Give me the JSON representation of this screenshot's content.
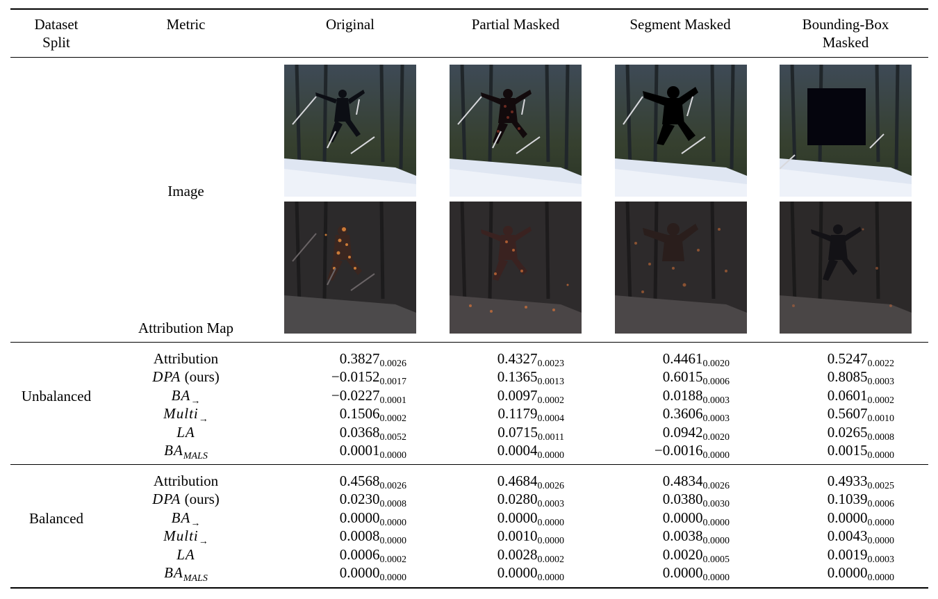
{
  "headers": {
    "split": [
      "Dataset",
      "Split"
    ],
    "metric": "Metric",
    "original": "Original",
    "partial": "Partial Masked",
    "segment": "Segment Masked",
    "bbox": [
      "Bounding-Box",
      "Masked"
    ]
  },
  "image_labels": {
    "image": "Image",
    "attribution_map": "Attribution Map"
  },
  "sections": [
    {
      "split": "Unbalanced",
      "rows": [
        {
          "metric": "Attribution",
          "values": [
            [
              "0.3827",
              "0.0026"
            ],
            [
              "0.4327",
              "0.0023"
            ],
            [
              "0.4461",
              "0.0020"
            ],
            [
              "0.5247",
              "0.0022"
            ]
          ]
        },
        {
          "metric": "DPA (ours)",
          "values": [
            [
              "−0.0152",
              "0.0017"
            ],
            [
              "0.1365",
              "0.0013"
            ],
            [
              "0.6015",
              "0.0006"
            ],
            [
              "0.8085",
              "0.0003"
            ]
          ]
        },
        {
          "metric": "BA→",
          "values": [
            [
              "−0.0227",
              "0.0001"
            ],
            [
              "0.0097",
              "0.0002"
            ],
            [
              "0.0188",
              "0.0003"
            ],
            [
              "0.0601",
              "0.0002"
            ]
          ]
        },
        {
          "metric": "Multi→",
          "values": [
            [
              "0.1506",
              "0.0002"
            ],
            [
              "0.1179",
              "0.0004"
            ],
            [
              "0.3606",
              "0.0003"
            ],
            [
              "0.5607",
              "0.0010"
            ]
          ]
        },
        {
          "metric": "LA",
          "values": [
            [
              "0.0368",
              "0.0052"
            ],
            [
              "0.0715",
              "0.0011"
            ],
            [
              "0.0942",
              "0.0020"
            ],
            [
              "0.0265",
              "0.0008"
            ]
          ]
        },
        {
          "metric": "BA_MALS",
          "values": [
            [
              "0.0001",
              "0.0000"
            ],
            [
              "0.0004",
              "0.0000"
            ],
            [
              "−0.0016",
              "0.0000"
            ],
            [
              "0.0015",
              "0.0000"
            ]
          ]
        }
      ]
    },
    {
      "split": "Balanced",
      "rows": [
        {
          "metric": "Attribution",
          "values": [
            [
              "0.4568",
              "0.0026"
            ],
            [
              "0.4684",
              "0.0026"
            ],
            [
              "0.4834",
              "0.0026"
            ],
            [
              "0.4933",
              "0.0025"
            ]
          ]
        },
        {
          "metric": "DPA (ours)",
          "values": [
            [
              "0.0230",
              "0.0008"
            ],
            [
              "0.0280",
              "0.0003"
            ],
            [
              "0.0380",
              "0.0030"
            ],
            [
              "0.1039",
              "0.0006"
            ]
          ]
        },
        {
          "metric": "BA→",
          "values": [
            [
              "0.0000",
              "0.0000"
            ],
            [
              "0.0000",
              "0.0000"
            ],
            [
              "0.0000",
              "0.0000"
            ],
            [
              "0.0000",
              "0.0000"
            ]
          ]
        },
        {
          "metric": "Multi→",
          "values": [
            [
              "0.0008",
              "0.0000"
            ],
            [
              "0.0010",
              "0.0000"
            ],
            [
              "0.0038",
              "0.0000"
            ],
            [
              "0.0043",
              "0.0000"
            ]
          ]
        },
        {
          "metric": "LA",
          "values": [
            [
              "0.0006",
              "0.0002"
            ],
            [
              "0.0028",
              "0.0002"
            ],
            [
              "0.0020",
              "0.0005"
            ],
            [
              "0.0019",
              "0.0003"
            ]
          ]
        },
        {
          "metric": "BA_MALS",
          "values": [
            [
              "0.0000",
              "0.0000"
            ],
            [
              "0.0000",
              "0.0000"
            ],
            [
              "0.0000",
              "0.0000"
            ],
            [
              "0.0000",
              "0.0000"
            ]
          ]
        }
      ]
    }
  ],
  "metric_parts": {
    "dpa": "DPA",
    "dpa_suffix": "(ours)",
    "ba": "BA",
    "arrow": "→",
    "multi": "Multi",
    "la": "LA",
    "mals": "MALS"
  }
}
